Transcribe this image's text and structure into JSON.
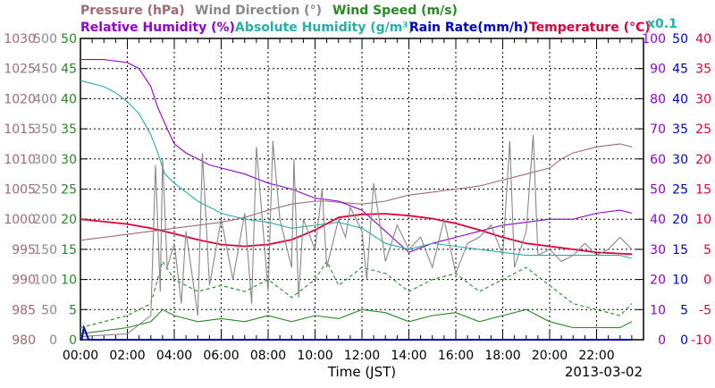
{
  "chart_data": {
    "type": "line",
    "date_label": "2013-03-02",
    "xlabel": "Time (JST)",
    "x_ticks": [
      "00:00",
      "02:00",
      "04:00",
      "06:00",
      "08:00",
      "10:00",
      "12:00",
      "14:00",
      "16:00",
      "18:00",
      "20:00",
      "22:00"
    ],
    "xlim": [
      0,
      24
    ],
    "legend": [
      {
        "id": "pressure",
        "text": "Pressure (hPa)",
        "color": "#a06a72"
      },
      {
        "id": "wind_dir",
        "text": "Wind Direction (°)",
        "color": "#888888"
      },
      {
        "id": "wind_speed",
        "text": "Wind Speed (m/s)",
        "color": "#228b22"
      },
      {
        "id": "rh",
        "text": "Relative Humidity (%)",
        "color": "#9400d3"
      },
      {
        "id": "ah",
        "text": "Absolute Humidity (g/m³)",
        "color": "#20b2aa"
      },
      {
        "id": "rain",
        "text": "Rain Rate(mm/h)",
        "color": "#0000cd"
      },
      {
        "id": "temp",
        "text": "Temperature (°C)",
        "color": "#e0003a"
      }
    ],
    "ah_scale_note": "x0.1",
    "axes": {
      "pressure": {
        "color": "#a06a72",
        "ticks": [
          "1030",
          "1025",
          "1020",
          "1015",
          "1010",
          "1005",
          "1000",
          "995",
          "990",
          "985",
          "980"
        ],
        "range": [
          980,
          1030
        ]
      },
      "wind_dir": {
        "color": "#888888",
        "ticks": [
          "500",
          "450",
          "400",
          "350",
          "300",
          "250",
          "200",
          "150",
          "100",
          "50",
          "0"
        ],
        "range": [
          0,
          500
        ]
      },
      "wind_speed": {
        "color": "#228b22",
        "ticks": [
          "50",
          "45",
          "40",
          "35",
          "30",
          "25",
          "20",
          "15",
          "10",
          "5",
          "0"
        ],
        "range": [
          0,
          50
        ]
      },
      "rh": {
        "color": "#9400d3",
        "ticks": [
          "100",
          "90",
          "80",
          "70",
          "60",
          "50",
          "40",
          "30",
          "20",
          "10",
          "0"
        ],
        "range": [
          0,
          100
        ]
      },
      "rain": {
        "color": "#0000cd",
        "ticks": [
          "50",
          "45",
          "40",
          "35",
          "30",
          "25",
          "20",
          "15",
          "10",
          "5",
          "0"
        ],
        "range": [
          0,
          50
        ]
      },
      "temp": {
        "color": "#e0003a",
        "ticks": [
          "40",
          "35",
          "30",
          "25",
          "20",
          "15",
          "10",
          "5",
          "0",
          "-5",
          "-10"
        ],
        "range": [
          -10,
          40
        ]
      }
    },
    "series": [
      {
        "id": "pressure",
        "name": "Pressure (hPa)",
        "color": "#a06a72",
        "axis": [
          980,
          1030
        ],
        "x": [
          0,
          1,
          2,
          3,
          4,
          5,
          6,
          7,
          8,
          9,
          10,
          10.5,
          11,
          12,
          13,
          14,
          15,
          16,
          17,
          18,
          19,
          20,
          20.5,
          21,
          22,
          23,
          23.5
        ],
        "y": [
          996.5,
          997,
          997.5,
          998,
          998.5,
          999,
          999.5,
          1000.3,
          1001.5,
          1002.5,
          1003,
          1003,
          1002.8,
          1002.5,
          1003,
          1004,
          1004.5,
          1005,
          1005.5,
          1006.5,
          1007.5,
          1008.5,
          1010,
          1011,
          1012,
          1012.5,
          1012
        ]
      },
      {
        "id": "rh",
        "name": "Relative Humidity (%)",
        "color": "#9400d3",
        "axis": [
          0,
          100
        ],
        "x": [
          0,
          1,
          2,
          2.5,
          3,
          3.3,
          3.7,
          4,
          4.5,
          5,
          5.5,
          6,
          7,
          8,
          9,
          10,
          11,
          12,
          13,
          14,
          15,
          16,
          17,
          18,
          19,
          20,
          21,
          22,
          23,
          23.5
        ],
        "y": [
          93,
          93,
          92,
          90,
          84,
          77,
          70,
          65,
          62,
          60,
          58,
          57,
          55,
          52,
          50,
          47,
          46,
          43,
          36,
          29,
          32,
          34,
          36,
          38,
          39,
          40,
          40,
          42,
          43,
          42
        ]
      },
      {
        "id": "ah",
        "name": "Absolute Humidity (g/m³)",
        "color": "#20b2aa",
        "axis": [
          0,
          100
        ],
        "x": [
          0,
          1,
          1.5,
          2,
          2.5,
          3,
          3.3,
          3.6,
          4,
          4.5,
          5,
          5.5,
          6,
          7,
          8,
          9,
          10,
          11,
          12,
          13,
          14,
          15,
          16,
          17,
          18,
          19,
          20,
          21,
          22,
          23,
          23.5
        ],
        "y": [
          86,
          84,
          82,
          79,
          75,
          68,
          62,
          55,
          52,
          49,
          46,
          44,
          42,
          40,
          39,
          37,
          38,
          39,
          37,
          32,
          30,
          32,
          31,
          30,
          29,
          28,
          28,
          28,
          28,
          28,
          27
        ]
      },
      {
        "id": "temp",
        "name": "Temperature (°C)",
        "color": "#e0003a",
        "axis": [
          -10,
          40
        ],
        "x": [
          0,
          1,
          2,
          3,
          4,
          5,
          6,
          7,
          8,
          9,
          10,
          11,
          12,
          13,
          14,
          15,
          16,
          17,
          18,
          19,
          20,
          21,
          22,
          23,
          23.5
        ],
        "y": [
          10,
          9.6,
          9.2,
          8.5,
          7.6,
          6.6,
          5.8,
          5.5,
          5.8,
          6.6,
          8.2,
          10.3,
          10.8,
          10.9,
          10.6,
          10.1,
          9.3,
          8.2,
          7,
          6,
          5.5,
          5,
          4.5,
          4.3,
          4.2
        ]
      },
      {
        "id": "wind_speed",
        "name": "Wind Speed (m/s)",
        "color": "#228b22",
        "axis": [
          0,
          50
        ],
        "x": [
          0,
          1,
          2,
          3,
          3.5,
          4,
          5,
          6,
          7,
          8,
          9,
          10,
          11,
          12,
          13,
          14,
          15,
          16,
          17,
          18,
          19,
          20,
          21,
          22,
          23,
          23.5
        ],
        "y": [
          1,
          1.5,
          2,
          3,
          5,
          4,
          3,
          3.5,
          3,
          4,
          3,
          4,
          3.5,
          5,
          4.5,
          3,
          4,
          4.5,
          3,
          4,
          5,
          3,
          2,
          2,
          2,
          3
        ]
      },
      {
        "id": "wind_gust",
        "name": "",
        "color": "#228b22",
        "dashed": true,
        "axis": [
          0,
          50
        ],
        "x": [
          0,
          1,
          2,
          3,
          3.5,
          4,
          5,
          6,
          7,
          8,
          9,
          10,
          10.5,
          11,
          12,
          13,
          14,
          15,
          16,
          17,
          18,
          19,
          20,
          21,
          22,
          23,
          23.5
        ],
        "y": [
          2,
          3,
          4,
          6,
          13,
          10,
          8,
          9,
          8,
          10,
          7,
          10,
          13,
          9,
          12,
          11,
          8,
          10,
          11,
          8,
          10,
          12,
          9,
          6,
          5,
          4,
          6
        ]
      },
      {
        "id": "wind_dir",
        "name": "Wind Direction (°)",
        "color": "#888888",
        "axis": [
          0,
          500
        ],
        "x": [
          0,
          2,
          3,
          3.2,
          3.4,
          3.5,
          3.7,
          4,
          4.3,
          4.5,
          5,
          5.2,
          5.5,
          6,
          6.5,
          7,
          7.3,
          7.5,
          8,
          8.2,
          8.5,
          9,
          9.1,
          9.3,
          9.5,
          10,
          10.3,
          10.5,
          11,
          11.3,
          11.5,
          12,
          12.2,
          12.5,
          13,
          13.5,
          14,
          14.5,
          15,
          15.5,
          16,
          16.5,
          17,
          17.5,
          18,
          18.3,
          18.5,
          19,
          19.3,
          19.5,
          20,
          20.5,
          21,
          21.5,
          22,
          22.5,
          23,
          23.5
        ],
        "y": [
          5,
          10,
          40,
          290,
          80,
          300,
          120,
          160,
          60,
          180,
          40,
          310,
          90,
          200,
          100,
          210,
          60,
          320,
          80,
          330,
          200,
          120,
          300,
          70,
          200,
          150,
          250,
          120,
          200,
          170,
          220,
          180,
          100,
          260,
          130,
          190,
          150,
          170,
          120,
          200,
          110,
          160,
          170,
          190,
          140,
          330,
          120,
          180,
          340,
          140,
          150,
          130,
          140,
          160,
          140,
          150,
          170,
          150
        ]
      },
      {
        "id": "rain",
        "name": "Rain Rate(mm/h)",
        "color": "#0000cd",
        "axis": [
          0,
          50
        ],
        "x": [
          0,
          0.05,
          0.15,
          0.25,
          0.35,
          23.5
        ],
        "y": [
          0,
          0,
          2,
          1,
          0,
          0
        ]
      }
    ]
  }
}
